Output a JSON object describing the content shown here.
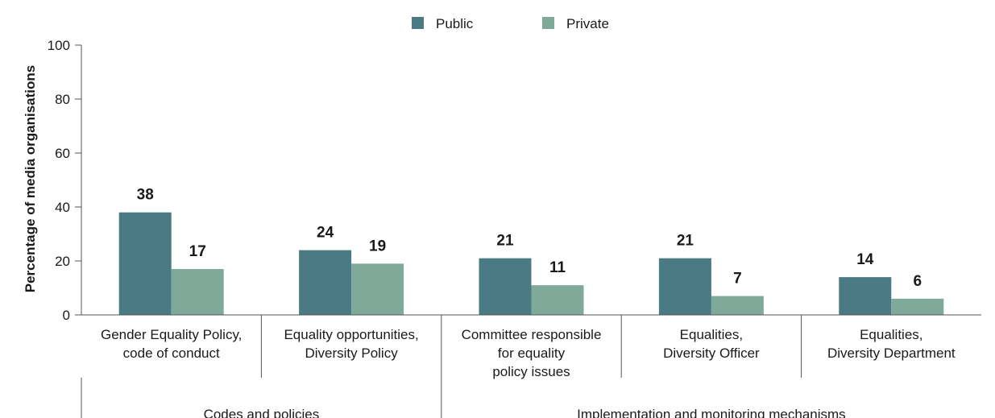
{
  "chart_data": {
    "type": "bar",
    "ylabel": "Percentage of media organisations",
    "ylim": [
      0,
      100
    ],
    "yticks": [
      0,
      20,
      40,
      60,
      80,
      100
    ],
    "legend_position": "top-center",
    "categories": [
      [
        "Gender Equality Policy,",
        "code of conduct"
      ],
      [
        "Equality opportunities,",
        "Diversity Policy"
      ],
      [
        "Committee responsible",
        "for equality",
        "policy issues"
      ],
      [
        "Equalities,",
        "Diversity Officer"
      ],
      [
        "Equalities,",
        "Diversity Department"
      ]
    ],
    "groups": [
      {
        "label": "Codes and policies",
        "categories": [
          0,
          1
        ]
      },
      {
        "label": "Implementation and monitoring mechanisms",
        "categories": [
          2,
          3,
          4
        ]
      }
    ],
    "series": [
      {
        "name": "Public",
        "color": "#4a7b84",
        "values": [
          38,
          24,
          21,
          21,
          14
        ]
      },
      {
        "name": "Private",
        "color": "#7faa9a",
        "values": [
          17,
          19,
          11,
          7,
          6
        ]
      }
    ]
  }
}
